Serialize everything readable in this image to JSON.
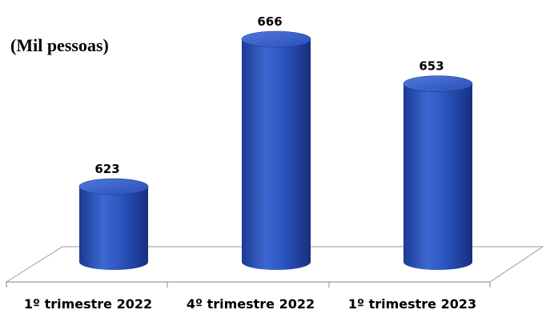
{
  "chart_data": {
    "type": "bar",
    "style": "3d-cylinder",
    "unit_label": "(Mil pessoas)",
    "categories": [
      "1º trimestre 2022",
      "4º trimestre 2022",
      "1º trimestre 2023"
    ],
    "values": [
      623,
      666,
      653
    ],
    "value_labels": [
      "623",
      "666",
      "653"
    ],
    "series_color": "#2d55c0",
    "grid": false,
    "legend": "none"
  }
}
